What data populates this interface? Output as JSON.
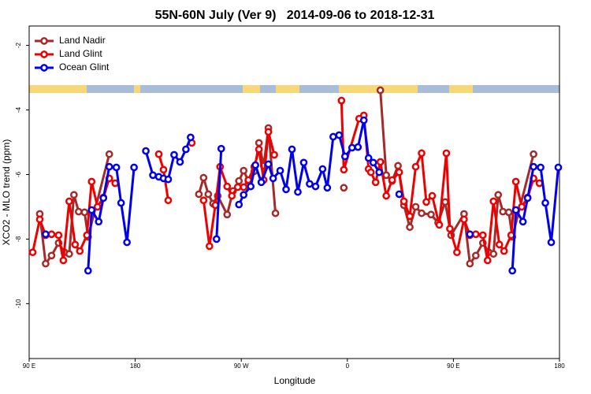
{
  "chart_data": {
    "type": "line",
    "title": "55N-60N July (Ver 9)   2014-09-06 to 2018-12-31",
    "x_label": "Longitude",
    "y_label": "XCO2 - MLO trend (ppm)",
    "xlim": [
      90,
      540
    ],
    "ylim": [
      -11.7,
      -1.4
    ],
    "xticks": [
      {
        "value": 90,
        "label": "90 E"
      },
      {
        "value": 180,
        "label": "180"
      },
      {
        "value": 270,
        "label": "90 W"
      },
      {
        "value": 360,
        "label": "0"
      },
      {
        "value": 450,
        "label": "90 E"
      },
      {
        "value": 540,
        "label": "180"
      }
    ],
    "yticks": [
      -2,
      -4,
      -6,
      -8,
      -10
    ],
    "legend": "top-left",
    "grid": false,
    "series": [
      {
        "name": "Land Nadir",
        "color": "#a52a2a",
        "x": [
          99,
          104,
          109,
          115,
          120,
          124,
          128,
          132,
          137,
          140,
          158,
          null,
          234,
          238,
          242,
          246,
          250,
          258,
          263,
          268,
          272,
          276,
          281,
          285,
          289,
          293,
          299,
          null,
          357,
          null,
          388,
          393,
          398,
          403,
          408,
          413,
          418,
          423,
          431,
          437,
          443,
          448,
          459,
          464,
          469,
          475,
          480,
          484,
          488,
          492,
          497,
          500,
          518
        ],
        "values": [
          -7.22,
          -8.76,
          -8.51,
          -8.12,
          -8.41,
          -8.46,
          -6.63,
          -7.15,
          -7.17,
          -7.93,
          -5.37,
          null,
          -6.61,
          -6.1,
          -6.61,
          -6.9,
          -6.66,
          -7.24,
          -6.51,
          -6.2,
          -5.88,
          -6.2,
          -5.9,
          -5.02,
          -5.73,
          -4.56,
          -7.2,
          null,
          -6.41,
          null,
          -3.39,
          -6.02,
          -6.2,
          -5.73,
          -6.95,
          -7.63,
          -7.0,
          -7.2,
          -7.24,
          -7.49,
          -6.85,
          -7.88,
          -7.22,
          -8.76,
          -8.51,
          -8.12,
          -8.41,
          -8.46,
          -6.63,
          -7.15,
          -7.17,
          -7.93,
          -5.37
        ]
      },
      {
        "name": "Land Glint",
        "color": "#ee0000",
        "x": [
          93,
          99,
          104,
          109,
          115,
          119,
          124,
          129,
          133,
          139,
          143,
          148,
          153,
          158,
          163,
          null,
          200,
          204,
          208,
          null,
          228,
          null,
          238,
          243,
          248,
          252,
          258,
          262,
          267,
          272,
          276,
          281,
          285,
          289,
          293,
          298,
          null,
          355,
          357,
          370,
          374,
          378,
          380,
          384,
          388,
          393,
          398,
          404,
          408,
          413,
          418,
          423,
          427,
          432,
          438,
          444,
          447,
          453,
          459,
          464,
          469,
          475,
          479,
          484,
          489,
          493,
          499,
          503,
          508,
          513,
          518,
          523
        ],
        "values": [
          -8.41,
          -7.39,
          -7.88,
          -7.85,
          -7.88,
          -8.66,
          -6.83,
          -8.17,
          -8.37,
          -7.88,
          -6.22,
          -7.0,
          -6.71,
          -6.12,
          -6.27,
          null,
          -5.37,
          -5.85,
          -6.8,
          null,
          -5.02,
          null,
          -6.8,
          -8.22,
          -6.95,
          -5.76,
          -6.37,
          -6.66,
          -6.39,
          -6.39,
          -6.17,
          -5.76,
          -5.22,
          -6.17,
          -4.68,
          -5.39,
          null,
          -3.71,
          -5.85,
          -4.27,
          -4.17,
          -5.83,
          -5.93,
          -6.24,
          -5.61,
          -6.66,
          -6.17,
          -5.93,
          -6.83,
          -7.29,
          -5.76,
          -5.34,
          -6.85,
          -6.66,
          -7.56,
          -5.34,
          -7.68,
          -8.41,
          -7.39,
          -7.88,
          -7.85,
          -7.88,
          -8.66,
          -6.83,
          -8.17,
          -8.37,
          -7.88,
          -6.22,
          -7.0,
          -6.71,
          -6.12,
          -6.27
        ]
      },
      {
        "name": "Ocean Glint",
        "color": "#0000ee",
        "x": [
          104,
          null,
          140,
          143,
          149,
          153,
          158,
          164,
          168,
          173,
          179,
          null,
          189,
          195,
          200,
          204,
          208,
          213,
          218,
          223,
          227,
          null,
          249,
          253,
          null,
          268,
          272,
          278,
          282,
          287,
          293,
          297,
          303,
          308,
          313,
          318,
          323,
          328,
          333,
          339,
          343,
          348,
          353,
          358,
          364,
          369,
          374,
          378,
          382,
          387,
          null,
          404,
          null,
          464,
          null,
          500,
          503,
          509,
          513,
          518,
          524,
          528,
          533,
          539
        ],
        "values": [
          -7.85,
          null,
          -8.98,
          -7.1,
          -7.46,
          -6.73,
          -5.76,
          -5.78,
          -6.88,
          -8.1,
          -5.78,
          null,
          -5.27,
          -6.02,
          -6.07,
          -6.12,
          -6.15,
          -5.39,
          -5.61,
          -5.22,
          -4.85,
          null,
          -8.0,
          -5.2,
          null,
          -6.93,
          -6.63,
          -6.37,
          -5.71,
          -6.24,
          -5.68,
          -6.12,
          -5.88,
          -6.46,
          -5.22,
          -6.54,
          -5.63,
          -6.29,
          -6.37,
          -5.83,
          -6.41,
          -4.83,
          -4.78,
          -5.44,
          -5.17,
          -5.15,
          -4.32,
          -5.49,
          -5.63,
          -5.93,
          null,
          -6.61,
          null,
          -7.85,
          null,
          -8.98,
          -7.1,
          -7.46,
          -6.73,
          -5.76,
          -5.78,
          -6.88,
          -8.1,
          -5.78
        ]
      }
    ]
  }
}
